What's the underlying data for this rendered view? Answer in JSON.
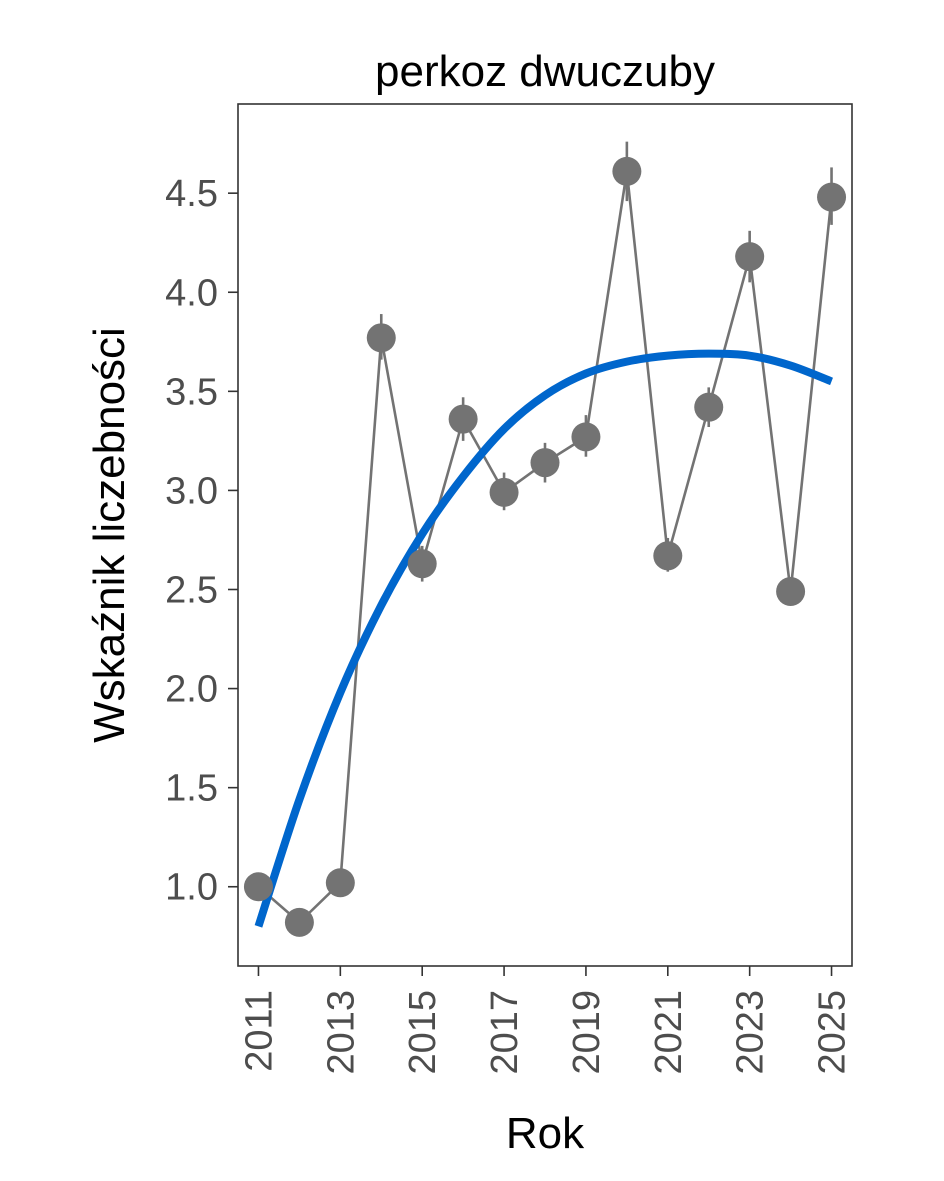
{
  "chart_data": {
    "type": "line",
    "title": "perkoz dwuczuby",
    "xlabel": "Rok",
    "ylabel": "Wskaźnik liczebności",
    "xlim": [
      2010.5,
      2025.5
    ],
    "ylim": [
      0.6,
      4.95
    ],
    "x_ticks": [
      2011,
      2013,
      2015,
      2017,
      2019,
      2021,
      2023,
      2025
    ],
    "y_ticks": [
      1.0,
      1.5,
      2.0,
      2.5,
      3.0,
      3.5,
      4.0,
      4.5
    ],
    "y_tick_labels": [
      "1.0",
      "1.5",
      "2.0",
      "2.5",
      "3.0",
      "3.5",
      "4.0",
      "4.5"
    ],
    "grid": false,
    "series": [
      {
        "kind": "points-with-line",
        "color": "#737373",
        "x": [
          2011,
          2012,
          2013,
          2014,
          2015,
          2016,
          2017,
          2018,
          2019,
          2020,
          2021,
          2022,
          2023,
          2024,
          2025
        ],
        "y": [
          1.0,
          0.82,
          1.02,
          3.77,
          2.63,
          3.36,
          2.99,
          3.14,
          3.27,
          4.61,
          2.67,
          3.42,
          4.18,
          2.49,
          4.48
        ],
        "err_low": [
          1.0,
          0.82,
          1.02,
          3.66,
          2.54,
          3.25,
          2.9,
          3.04,
          3.17,
          4.46,
          2.59,
          3.32,
          4.05,
          2.45,
          4.34
        ],
        "err_high": [
          1.0,
          0.82,
          1.02,
          3.89,
          2.72,
          3.47,
          3.09,
          3.24,
          3.38,
          4.76,
          2.76,
          3.52,
          4.31,
          2.54,
          4.63
        ]
      },
      {
        "kind": "trend",
        "color": "#0066cc",
        "x": [
          2011,
          2012,
          2013,
          2014,
          2015,
          2016,
          2017,
          2018,
          2019,
          2020,
          2021,
          2022,
          2023,
          2024,
          2025
        ],
        "y": [
          0.8,
          1.44,
          1.98,
          2.42,
          2.78,
          3.07,
          3.31,
          3.48,
          3.59,
          3.65,
          3.68,
          3.69,
          3.68,
          3.63,
          3.55
        ]
      }
    ]
  }
}
